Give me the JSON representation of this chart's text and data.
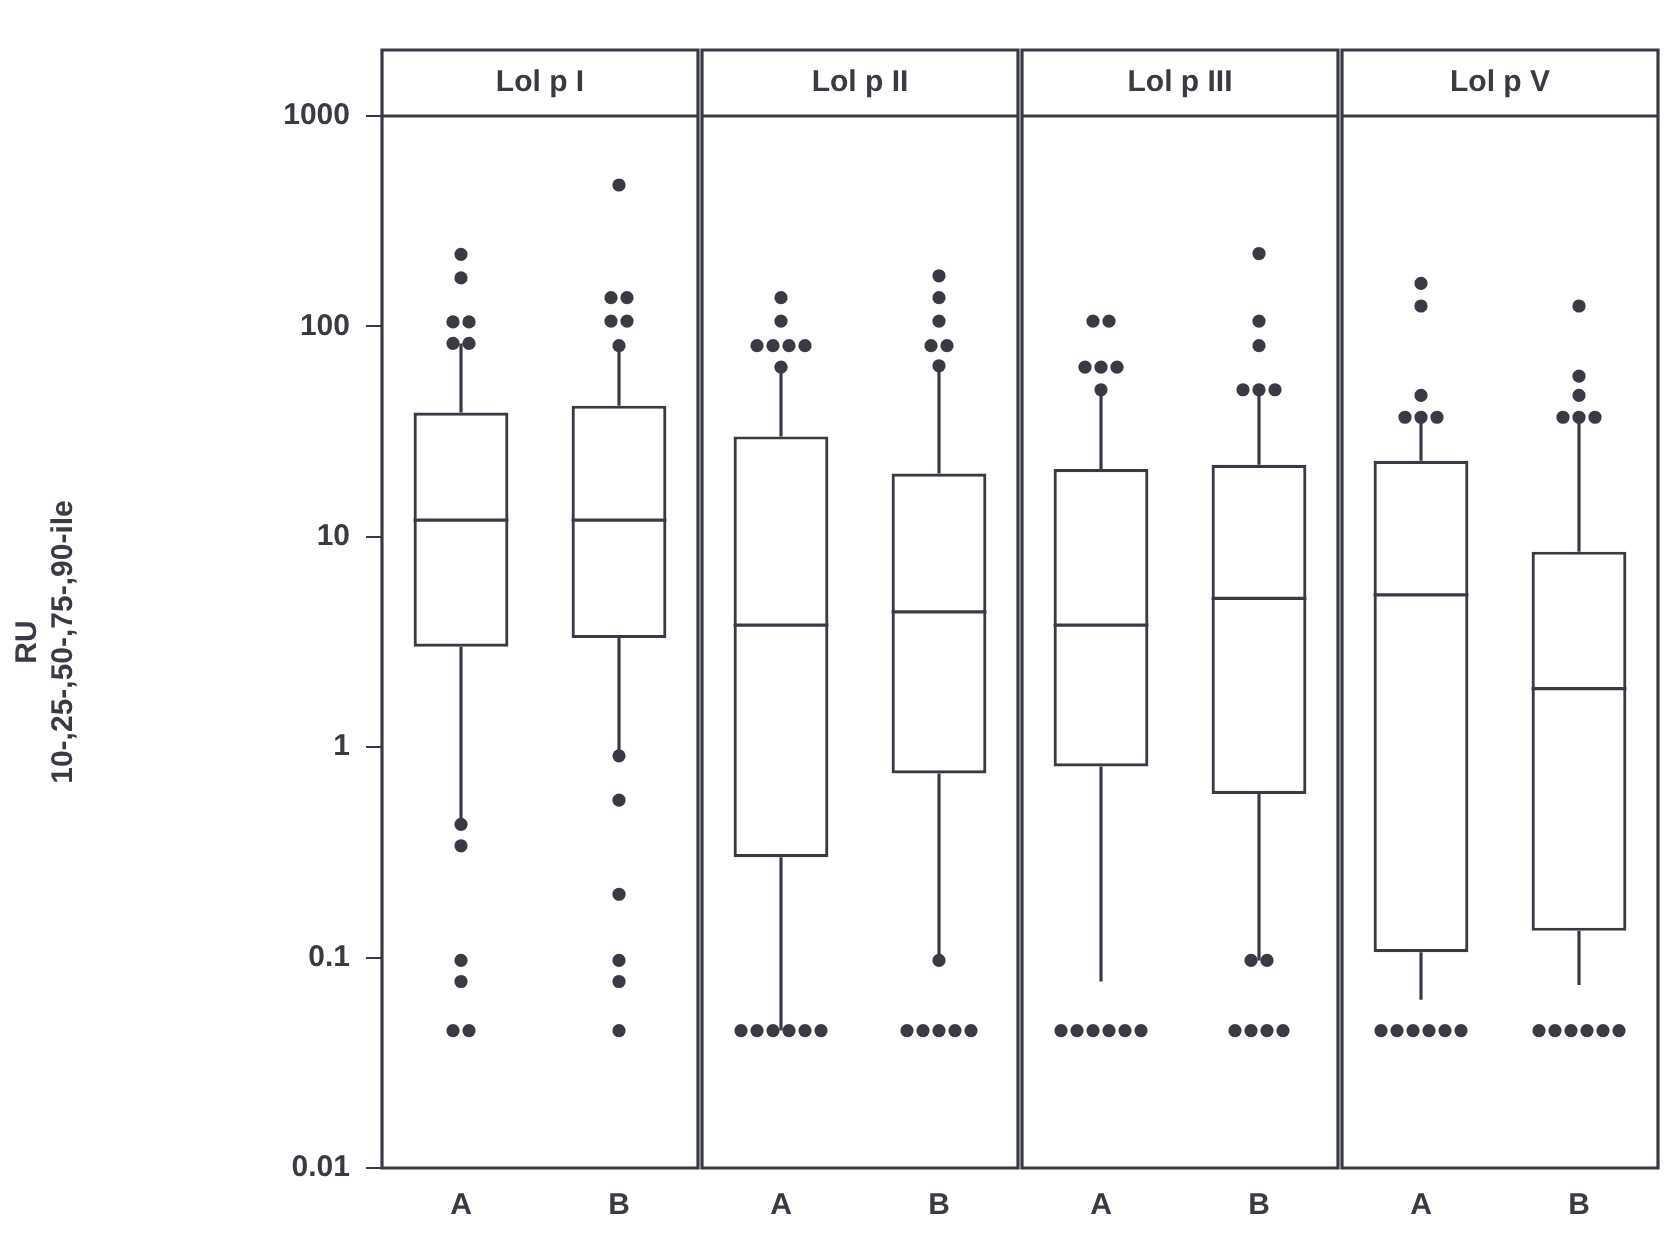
{
  "chart_data": [
    {
      "type": "box",
      "title": "Lol p I",
      "ylabel": "RU\n10-,25-,50-,75-,90-ile",
      "categories": [
        "A",
        "B"
      ],
      "log": true,
      "ylim": [
        0.01,
        1000
      ],
      "yticks": [
        0.01,
        0.1,
        1,
        10,
        100,
        1000
      ],
      "grid": false,
      "boxes": [
        {
          "low": 0.43,
          "q1": 3,
          "median": 12,
          "q3": 39,
          "high": 83,
          "outliers": [
            220,
            170,
            105,
            105,
            83,
            83,
            0.43,
            0.34,
            0.097,
            0.077,
            0.045,
            0.045
          ]
        },
        {
          "low": 0.91,
          "q1": 3.3,
          "median": 12,
          "q3": 42,
          "high": 81,
          "outliers": [
            470,
            137,
            137,
            106,
            106,
            81,
            0.91,
            0.56,
            0.2,
            0.097,
            0.077,
            0.045
          ]
        }
      ]
    },
    {
      "type": "box",
      "title": "Lol p II",
      "categories": [
        "A",
        "B"
      ],
      "log": true,
      "ylim": [
        0.01,
        1000
      ],
      "yticks": [
        0.01,
        0.1,
        1,
        10,
        100,
        1000
      ],
      "tick_labels": "x",
      "grid": false,
      "boxes": [
        {
          "low": 0.045,
          "q1": 0.3,
          "median": 3.8,
          "q3": 30,
          "high": 64,
          "outliers": [
            137,
            106,
            81,
            81,
            81,
            81,
            64,
            0.045,
            0.045,
            0.045,
            0.045,
            0.045,
            0.045
          ]
        },
        {
          "low": 0.097,
          "q1": 0.75,
          "median": 4.4,
          "q3": 20,
          "high": 65,
          "outliers": [
            174,
            137,
            106,
            81,
            81,
            65,
            0.097,
            0.045,
            0.045,
            0.045,
            0.045,
            0.045
          ]
        }
      ]
    },
    {
      "type": "box",
      "title": "Lol p III",
      "categories": [
        "A",
        "B"
      ],
      "log": true,
      "ylim": [
        0.01,
        1000
      ],
      "yticks": [
        0.01,
        0.1,
        1,
        10,
        100,
        1000
      ],
      "tick_labels": "x",
      "grid": false,
      "boxes": [
        {
          "low": 0.077,
          "q1": 0.81,
          "median": 3.8,
          "q3": 21,
          "high": 50,
          "outliers": [
            106,
            106,
            64,
            64,
            64,
            50,
            0.045,
            0.045,
            0.045,
            0.045,
            0.045,
            0.045
          ]
        },
        {
          "low": 0.097,
          "q1": 0.6,
          "median": 5.1,
          "q3": 22,
          "high": 50,
          "outliers": [
            222,
            106,
            81,
            50,
            50,
            50,
            0.097,
            0.097,
            0.045,
            0.045,
            0.045,
            0.045
          ]
        }
      ]
    },
    {
      "type": "box",
      "title": "Lol p V",
      "categories": [
        "A",
        "B"
      ],
      "log": true,
      "ylim": [
        0.01,
        1000
      ],
      "yticks": [
        0.01,
        0.1,
        1,
        10,
        100,
        1000
      ],
      "tick_labels": "x",
      "grid": false,
      "boxes": [
        {
          "low": 0.063,
          "q1": 0.106,
          "median": 5.3,
          "q3": 23,
          "high": 37,
          "outliers": [
            160,
            125,
            47,
            37,
            37,
            37,
            0.045,
            0.045,
            0.045,
            0.045,
            0.045,
            0.045
          ]
        },
        {
          "low": 0.074,
          "q1": 0.134,
          "median": 1.9,
          "q3": 8.5,
          "high": 37,
          "outliers": [
            125,
            58,
            47,
            37,
            37,
            37,
            0.045,
            0.045,
            0.045,
            0.045,
            0.045,
            0.045
          ]
        }
      ]
    }
  ]
}
